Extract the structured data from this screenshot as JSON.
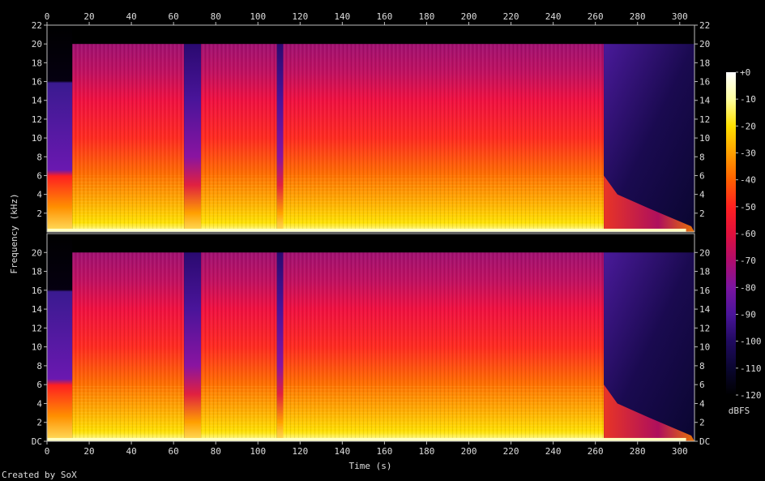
{
  "chart_data": {
    "type": "heatmap",
    "subtype": "spectrogram",
    "xlabel": "Time (s)",
    "ylabel": "Frequency (kHz)",
    "xlim": [
      0,
      307
    ],
    "ylim": [
      0,
      22
    ],
    "x_ticks": [
      "0",
      "20",
      "40",
      "60",
      "80",
      "100",
      "120",
      "140",
      "160",
      "180",
      "200",
      "220",
      "240",
      "260",
      "280",
      "300"
    ],
    "y_ticks_upper": [
      "2",
      "4",
      "6",
      "8",
      "10",
      "12",
      "14",
      "16",
      "18",
      "20",
      "22"
    ],
    "y_ticks_lower": [
      "DC",
      "2",
      "4",
      "6",
      "8",
      "10",
      "12",
      "14",
      "16",
      "18",
      "20"
    ],
    "y_tick_values": [
      0,
      2,
      4,
      6,
      8,
      10,
      12,
      14,
      16,
      18,
      20,
      22
    ],
    "channels": 2,
    "colorbar": {
      "label": "dBFS",
      "range": [
        -120,
        0
      ],
      "ticks": [
        "+0",
        "-10",
        "-20",
        "-30",
        "-40",
        "-50",
        "-60",
        "-70",
        "-80",
        "-90",
        "-100",
        "-110",
        "-120"
      ],
      "stops": [
        "#ffffff",
        "#ffffa0",
        "#ffe000",
        "#ffa000",
        "#ff6000",
        "#ff2020",
        "#e0103c",
        "#b00c6c",
        "#7a14a0",
        "#4a149a",
        "#200a60",
        "#0a0630",
        "#000000"
      ]
    },
    "segments": [
      {
        "t": [
          0,
          12
        ],
        "level": "intro"
      },
      {
        "t": [
          12,
          65
        ],
        "level": "full"
      },
      {
        "t": [
          65,
          73
        ],
        "level": "break"
      },
      {
        "t": [
          73,
          109
        ],
        "level": "full"
      },
      {
        "t": [
          109,
          112
        ],
        "level": "break"
      },
      {
        "t": [
          112,
          264
        ],
        "level": "full"
      },
      {
        "t": [
          264,
          307
        ],
        "level": "fade"
      }
    ]
  },
  "footer": {
    "credit": "Created by SoX"
  }
}
